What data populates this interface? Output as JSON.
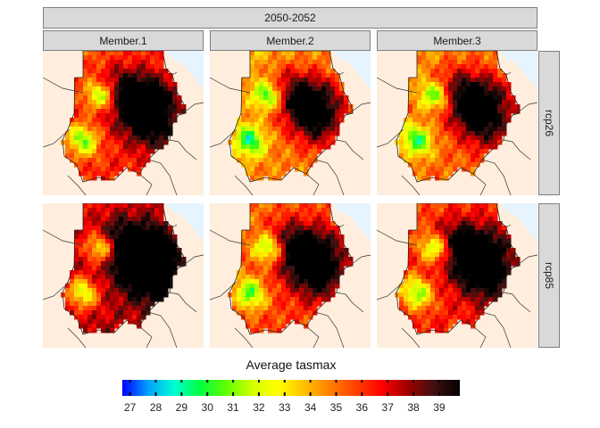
{
  "chart_data": {
    "type": "heatmap",
    "title": "2050-2052",
    "columns": [
      "Member.1",
      "Member.2",
      "Member.3"
    ],
    "rows": [
      "rcp26",
      "rcp85"
    ],
    "legend": {
      "title": "Average tasmax",
      "ticks": [
        27,
        28,
        29,
        30,
        31,
        32,
        33,
        34,
        35,
        36,
        37,
        38,
        39
      ],
      "range": [
        26.7,
        39.8
      ],
      "colors": [
        "#0000ff",
        "#00a0ff",
        "#00ffd0",
        "#00ff40",
        "#60ff00",
        "#d0ff00",
        "#ffff00",
        "#ffc000",
        "#ff8000",
        "#ff4000",
        "#ff0000",
        "#a00000",
        "#401010",
        "#000000"
      ]
    },
    "panels": [
      {
        "row": "rcp26",
        "column": "Member.1",
        "mean_tasmax": 36.3
      },
      {
        "row": "rcp26",
        "column": "Member.2",
        "mean_tasmax": 34.8
      },
      {
        "row": "rcp26",
        "column": "Member.3",
        "mean_tasmax": 35.2
      },
      {
        "row": "rcp85",
        "column": "Member.1",
        "mean_tasmax": 37.6
      },
      {
        "row": "rcp85",
        "column": "Member.2",
        "mean_tasmax": 35.8
      },
      {
        "row": "rcp85",
        "column": "Member.3",
        "mean_tasmax": 36.4
      }
    ]
  }
}
